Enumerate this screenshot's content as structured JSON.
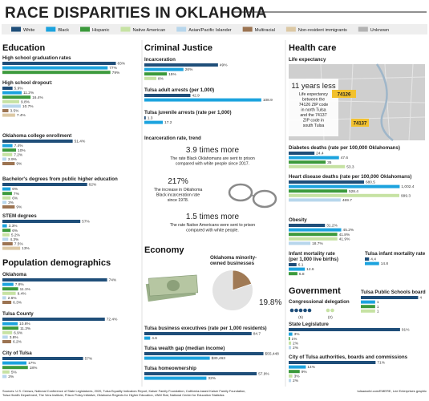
{
  "title": "RACE DISPARITIES IN OKLAHOMA",
  "legend": [
    {
      "name": "White",
      "color": "#1f4e79"
    },
    {
      "name": "Black",
      "color": "#1ca3de"
    },
    {
      "name": "Hispanic",
      "color": "#3c9a3c"
    },
    {
      "name": "Native American",
      "color": "#c6e2a3"
    },
    {
      "name": "Asian/Pacific Islander",
      "color": "#b7d6ec"
    },
    {
      "name": "Multiracial",
      "color": "#9c7452"
    },
    {
      "name": "Non-resident immigrants",
      "color": "#dcc8a4"
    },
    {
      "name": "Unknown",
      "color": "#b3b3b3"
    }
  ],
  "headings": {
    "education": "Education",
    "criminal_justice": "Criminal Justice",
    "health_care": "Health care",
    "population": "Population demographics",
    "economy": "Economy",
    "government": "Government"
  },
  "trend": {
    "title": "Incarceration rate, trend",
    "items": [
      {
        "figure": "3.9 times more",
        "lines": [
          "The rate Black Oklahomans are sent to prison",
          "compared with white people since 2017."
        ]
      },
      {
        "figure": "217%",
        "lines": [
          "The increase in Oklahoma",
          "Black incarceration rate",
          "since 1978."
        ]
      },
      {
        "figure": "1.5 times more",
        "lines": [
          "The rate Native Americans were sent to prison",
          "compared with white people."
        ]
      }
    ]
  },
  "life_expectancy": {
    "title": "Life expectancy",
    "figure": "11 years less",
    "lines": [
      "Life expectancy",
      "between the",
      "74126 ZIP code",
      "in north Tulsa",
      "and the 74137",
      "ZIP code in",
      "south Tulsa"
    ],
    "zip_north": "74126",
    "zip_south": "74137"
  },
  "sources": [
    "Sources: U.S. Census, National Conference of State Legislatures, 2020, Tulsa Equality Indicators Report, Kaiser Family Foundation, California-based Kaiser Family Foundation,",
    "Tulsa Health Department, The Vera Institute, Prison Policy Initiative, Oklahoma Regents for Higher Education, UNM Stat, National Center for Education Statistics"
  ],
  "credit": "tulsaworld.com/EMERE, Lee Enterprises graphic",
  "chart_data": [
    {
      "type": "bar",
      "title": "High school graduation rates",
      "values": [
        83,
        77,
        79
      ],
      "value_labels": [
        "83%",
        "77%",
        "79%"
      ],
      "colors": [
        "#1f4e79",
        "#1ca3de",
        "#3c9a3c"
      ],
      "xlim": [
        0,
        88
      ]
    },
    {
      "type": "bar",
      "title": "High school dropout:",
      "values": [
        5.9,
        11.2,
        16.4,
        9.8,
        10.7,
        3.5,
        7.4
      ],
      "value_labels": [
        "5.9%",
        "11.2%",
        "16.4%",
        "9.8%",
        "10.7%",
        "3.5%",
        "7.4%"
      ],
      "colors": [
        "#1f4e79",
        "#1ca3de",
        "#3c9a3c",
        "#c6e2a3",
        "#b7d6ec",
        "#9c7452",
        "#dcc8a4"
      ],
      "xlim": [
        0,
        70
      ]
    },
    {
      "type": "bar",
      "title": "Oklahoma college enrollment",
      "values": [
        51.4,
        7.4,
        10,
        7.2,
        2.9,
        9
      ],
      "value_labels": [
        "51.4%",
        "7.4%",
        "10%",
        "7.2%",
        "2.9%",
        "9%"
      ],
      "colors": [
        "#1f4e79",
        "#1ca3de",
        "#3c9a3c",
        "#c6e2a3",
        "#b7d6ec",
        "#9c7452"
      ],
      "xlim": [
        0,
        88
      ]
    },
    {
      "type": "bar",
      "title": "Bachelor's degrees from public higher education",
      "values": [
        62,
        6,
        7,
        6,
        3,
        9
      ],
      "value_labels": [
        "62%",
        "6%",
        "7%",
        "6%",
        "3%",
        "9%"
      ],
      "colors": [
        "#1f4e79",
        "#1ca3de",
        "#3c9a3c",
        "#c6e2a3",
        "#b7d6ec",
        "#9c7452"
      ],
      "xlim": [
        0,
        88
      ]
    },
    {
      "type": "bar",
      "title": "STEM degrees",
      "values": [
        57,
        3.3,
        6,
        5.2,
        4.3,
        7.5,
        13
      ],
      "value_labels": [
        "57%",
        "3.3%",
        "6%",
        "5.2%",
        "4.3%",
        "7.5%",
        "13%"
      ],
      "colors": [
        "#1f4e79",
        "#1ca3de",
        "#3c9a3c",
        "#c6e2a3",
        "#b7d6ec",
        "#9c7452",
        "#dcc8a4"
      ],
      "xlim": [
        0,
        88
      ]
    },
    {
      "type": "bar",
      "title": "Oklahoma",
      "values": [
        74,
        7.8,
        11.1,
        9.4,
        2.6,
        6.3
      ],
      "value_labels": [
        "74%",
        "7.8%",
        "11.1%",
        "9.4%",
        "2.6%",
        "6.3%"
      ],
      "colors": [
        "#1f4e79",
        "#1ca3de",
        "#3c9a3c",
        "#c6e2a3",
        "#b7d6ec",
        "#9c7452"
      ],
      "xlim": [
        0,
        85
      ]
    },
    {
      "type": "bar",
      "title": "Tulsa County",
      "values": [
        72.4,
        10.8,
        11.3,
        6.9,
        3.8,
        6.2
      ],
      "value_labels": [
        "72.4%",
        "10.8%",
        "11.3%",
        "6.9%",
        "3.8%",
        "6.2%"
      ],
      "colors": [
        "#1f4e79",
        "#1ca3de",
        "#3c9a3c",
        "#c6e2a3",
        "#b7d6ec",
        "#9c7452"
      ],
      "xlim": [
        0,
        85
      ]
    },
    {
      "type": "bar",
      "title": "City of Tulsa",
      "values": [
        57,
        17,
        18,
        5,
        3
      ],
      "value_labels": [
        "57%",
        "17%",
        "18%",
        "5%",
        "3%"
      ],
      "colors": [
        "#1f4e79",
        "#1ca3de",
        "#3c9a3c",
        "#c6e2a3",
        "#b7d6ec"
      ],
      "xlim": [
        0,
        85
      ]
    },
    {
      "type": "bar",
      "title": "Incarceration",
      "values": [
        49,
        26,
        15,
        8
      ],
      "value_labels": [
        "49%",
        "26%",
        "15%",
        "8%"
      ],
      "colors": [
        "#1f4e79",
        "#1ca3de",
        "#3c9a3c",
        "#c6e2a3"
      ],
      "xlim": [
        0,
        80
      ]
    },
    {
      "type": "bar",
      "title": "Tulsa adult arrests (per 1,000)",
      "values": [
        42.9,
        108.9
      ],
      "colors": [
        "#1f4e79",
        "#1ca3de"
      ],
      "xlim": [
        0,
        112
      ]
    },
    {
      "type": "bar",
      "title": "Tulsa juvenile arrests (rate per 1,000)",
      "values": [
        1.3,
        17.2
      ],
      "colors": [
        "#1f4e79",
        "#1ca3de"
      ],
      "xlim": [
        0,
        112
      ]
    },
    {
      "type": "pie",
      "title": [
        "Oklahoma minority-",
        "owned businesses"
      ],
      "values": [
        19.8
      ],
      "value_labels": [
        "19.8%"
      ],
      "colors": [
        "#a07a55"
      ]
    },
    {
      "type": "bar",
      "title": "Tulsa business executives (rate per 1,000 residents)",
      "values": [
        84.7,
        4.6
      ],
      "colors": [
        "#1f4e79",
        "#1ca3de"
      ],
      "xlim": [
        0,
        95
      ]
    },
    {
      "type": "bar",
      "title": "Tulsa wealth gap (median income)",
      "values": [
        55448,
        30463
      ],
      "value_labels": [
        "$55,448",
        "$30,463"
      ],
      "colors": [
        "#1f4e79",
        "#1ca3de"
      ],
      "xlim": [
        0,
        56000
      ]
    },
    {
      "type": "bar",
      "title": "Tulsa homeownership",
      "values": [
        57.9,
        32
      ],
      "value_labels": [
        "57.9%",
        "32%"
      ],
      "colors": [
        "#1f4e79",
        "#1ca3de"
      ],
      "xlim": [
        0,
        62
      ]
    },
    {
      "type": "bar",
      "title": "Diabetes deaths (rate per 100,000 Oklahomans)",
      "values": [
        24.4,
        47.6,
        35,
        53.3
      ],
      "colors": [
        "#1f4e79",
        "#1ca3de",
        "#3c9a3c",
        "#c6e2a3"
      ],
      "xlim": [
        0,
        110
      ]
    },
    {
      "type": "bar",
      "title": "Heart disease deaths (rate per 100,000 Oklahomans)",
      "values": [
        680.5,
        1002.4,
        528.4,
        999.3,
        469.7
      ],
      "value_labels": [
        "680.5",
        "1,002.4",
        "528.4",
        "999.3",
        "469.7"
      ],
      "colors": [
        "#1f4e79",
        "#1ca3de",
        "#3c9a3c",
        "#c6e2a3",
        "#b7d6ec"
      ],
      "xlim": [
        0,
        1050
      ]
    },
    {
      "type": "bar",
      "title": "Obesity",
      "values": [
        31.2,
        45.2,
        41.8,
        41.9,
        18.7
      ],
      "value_labels": [
        "31.2%",
        "45.2%",
        "41.8%",
        "41.9%",
        "18.7%"
      ],
      "colors": [
        "#1f4e79",
        "#1ca3de",
        "#3c9a3c",
        "#c6e2a3",
        "#b7d6ec"
      ],
      "xlim": [
        0,
        100
      ]
    },
    {
      "type": "bar",
      "title": [
        "Infant mortality rate",
        "(per 1,000 live births)"
      ],
      "values": [
        6.1,
        12.6,
        6.8
      ],
      "colors": [
        "#1f4e79",
        "#1ca3de",
        "#3c9a3c"
      ],
      "xlim": [
        0,
        50
      ]
    },
    {
      "type": "bar",
      "title": "Tulsa infant mortality rate",
      "values": [
        4.4,
        14.8
      ],
      "colors": [
        "#1f4e79",
        "#1ca3de"
      ],
      "xlim": [
        0,
        50
      ]
    },
    {
      "type": "icons",
      "title": "Congressional delegation",
      "values": [
        5,
        2
      ],
      "value_labels": [
        "(5)",
        "(2)"
      ],
      "colors": [
        "#1f4e79",
        "#c6e2a3"
      ]
    },
    {
      "type": "bar",
      "title": "Tulsa Public Schools board",
      "values": [
        4,
        1,
        1,
        1
      ],
      "colors": [
        "#1f4e79",
        "#1ca3de",
        "#3c9a3c",
        "#c6e2a3"
      ],
      "xlim": [
        0,
        4.2
      ]
    },
    {
      "type": "bar",
      "title": "State Legislature",
      "values": [
        91,
        3,
        1,
        2,
        2
      ],
      "value_labels": [
        "91%",
        "3%",
        "1%",
        "2%",
        "2%"
      ],
      "colors": [
        "#1f4e79",
        "#1ca3de",
        "#3c9a3c",
        "#c6e2a3",
        "#b7d6ec"
      ],
      "xlim": [
        0,
        95
      ]
    },
    {
      "type": "bar",
      "title": "City of Tulsa authorities, boards and commissions",
      "values": [
        71,
        14,
        9,
        3,
        2
      ],
      "value_labels": [
        "71%",
        "14%",
        "9%",
        "3%",
        "2%"
      ],
      "colors": [
        "#1f4e79",
        "#1ca3de",
        "#3c9a3c",
        "#c6e2a3",
        "#b7d6ec"
      ],
      "xlim": [
        0,
        95
      ]
    }
  ]
}
